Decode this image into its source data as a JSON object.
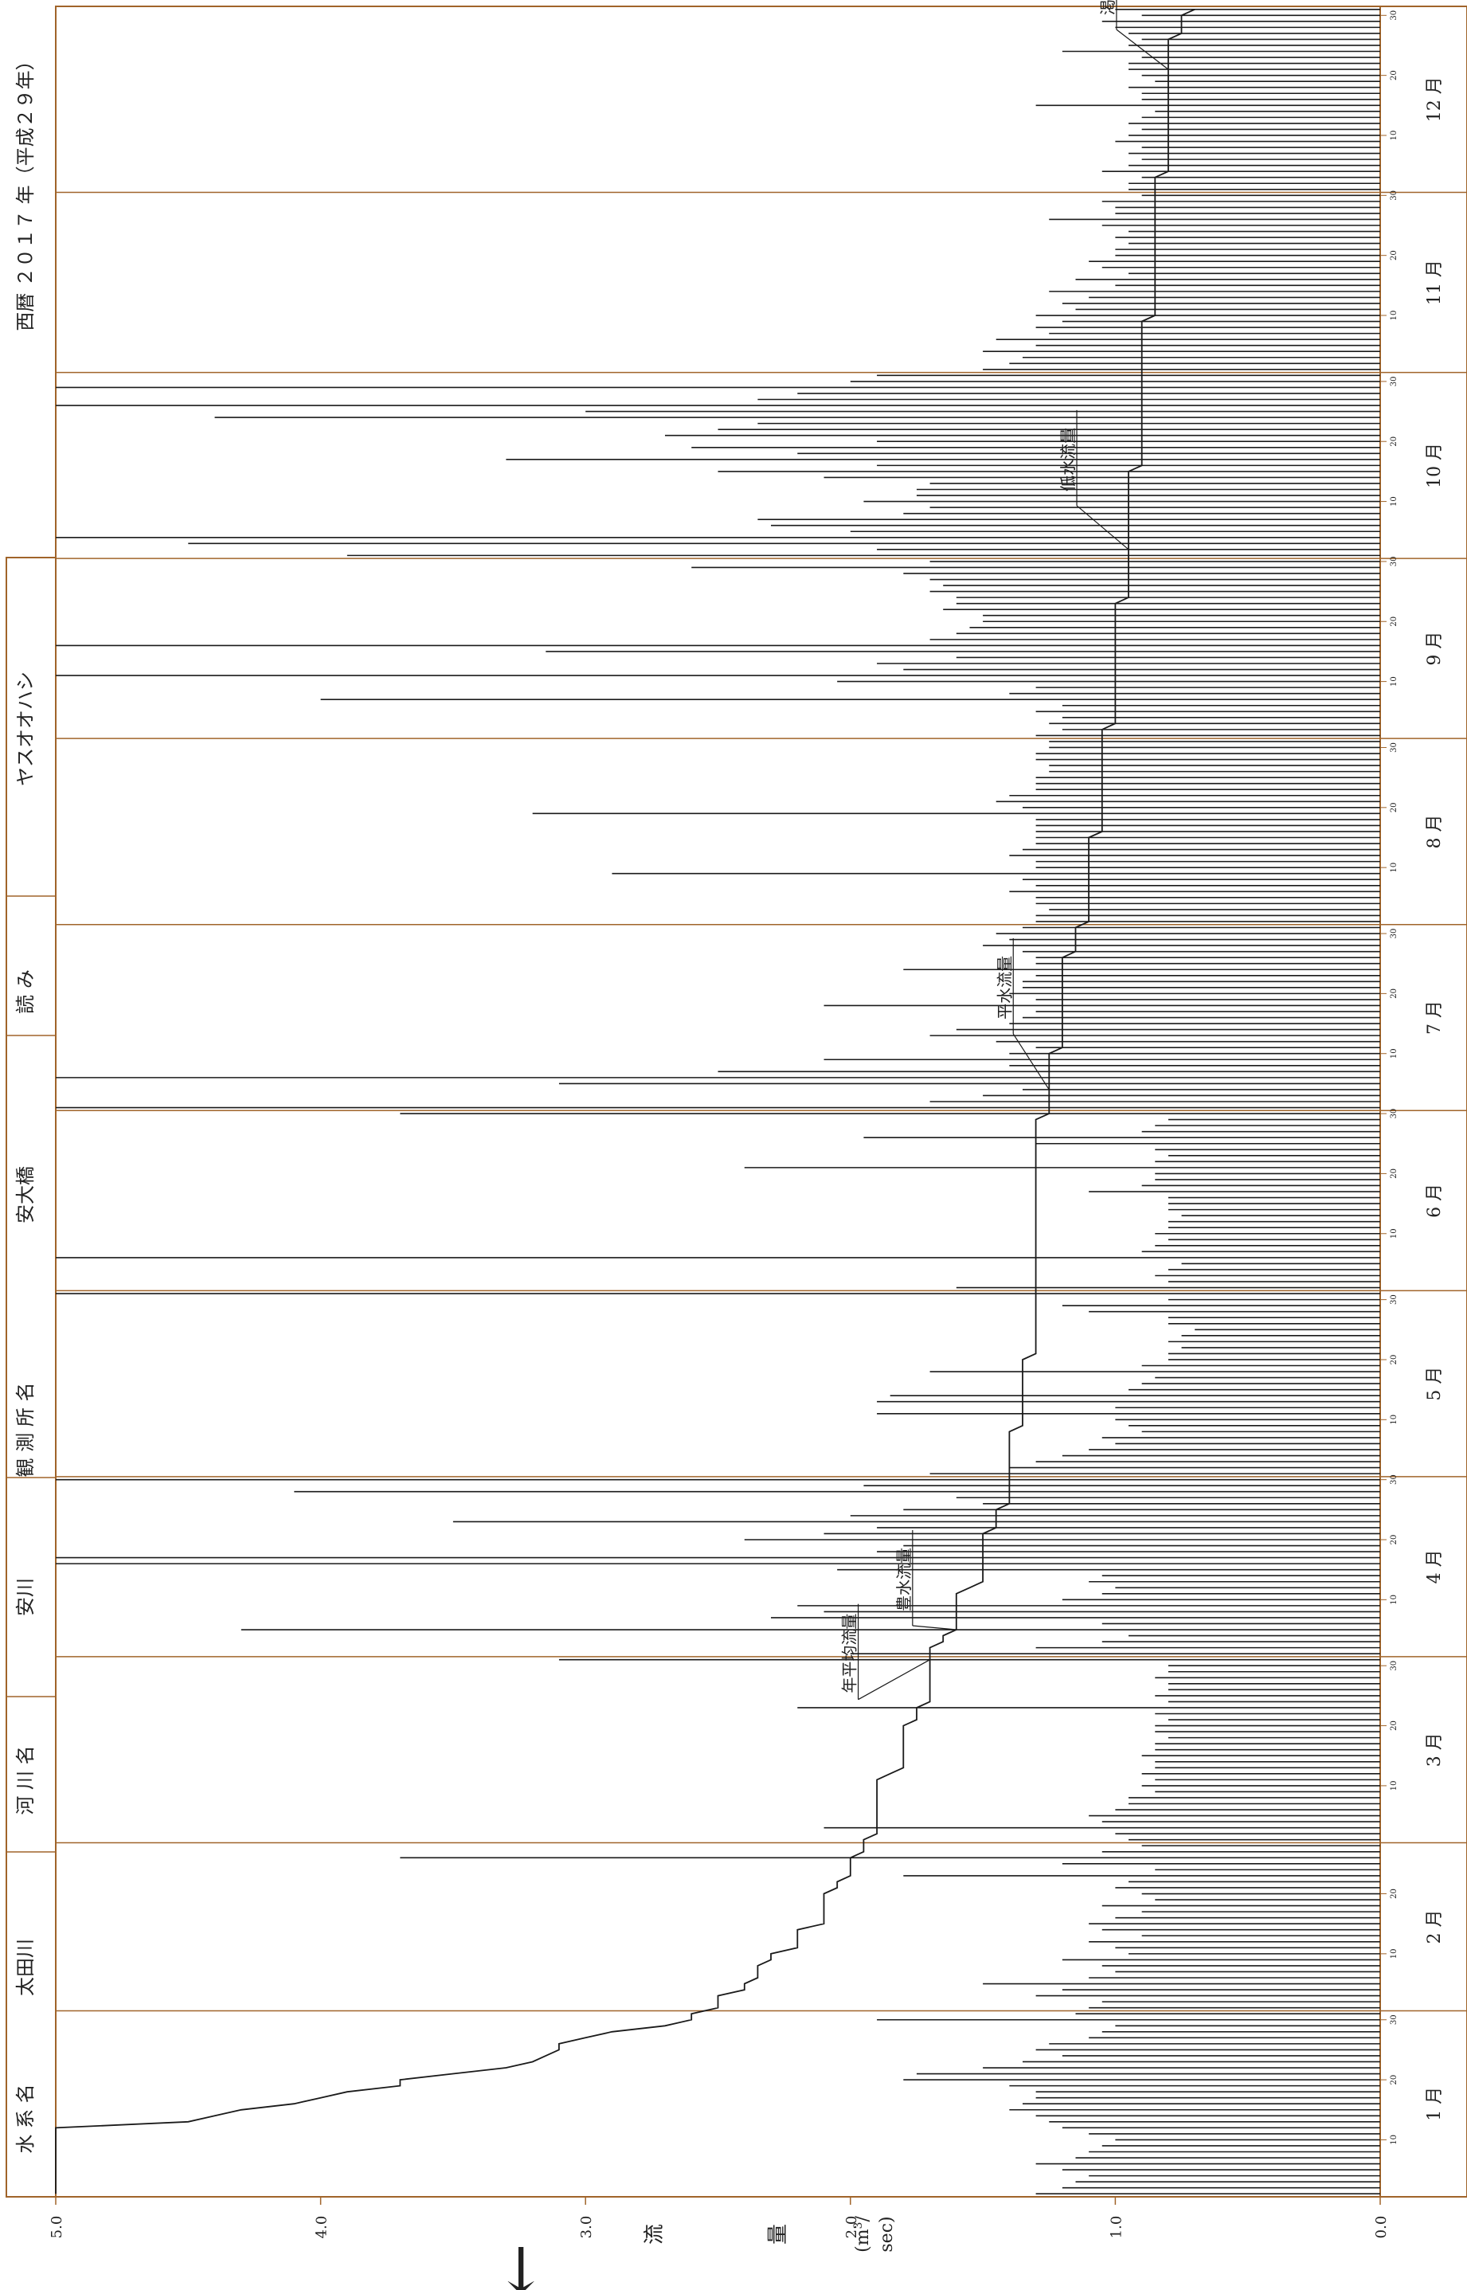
{
  "header": {
    "year_label": "西暦 ２０１７ 年（平成２９年）",
    "river_system_label": "水 系 名",
    "river_system_name": "太田川",
    "river_label": "河 川 名",
    "river_name": "安川",
    "station_label": "観 測 所 名",
    "station_name": "安大橋",
    "reading_label": "読 み",
    "reading_value": "ヤスオオハシ"
  },
  "axis": {
    "ylabel_chars": [
      "流",
      "量"
    ],
    "unit_paren_open": "(m",
    "unit_sup": "3",
    "unit_slash": "/",
    "unit_sec": "sec)",
    "arrow": "←"
  },
  "colors": {
    "frame": "#a0642a",
    "grid": "#a0642a",
    "bars": "#1a1a1a",
    "curve": "#1a1a1a"
  },
  "chart_data": {
    "type": "bar",
    "title": "",
    "ylabel": "流量",
    "yunit": "m3/sec",
    "ylim": [
      0,
      5
    ],
    "yticks": [
      0,
      1,
      2,
      3,
      4,
      5
    ],
    "ytick_labels": [
      "0.0",
      "1.0",
      "2.0",
      "3.0",
      "4.0",
      "5.0"
    ],
    "grid": false,
    "months": [
      "1 月",
      "2 月",
      "3 月",
      "4 月",
      "5 月",
      "6 月",
      "7 月",
      "8 月",
      "9 月",
      "10 月",
      "11 月",
      "12 月"
    ],
    "month_days": [
      31,
      28,
      31,
      30,
      31,
      30,
      31,
      31,
      30,
      31,
      30,
      31
    ],
    "day_ticks": [
      "10",
      "20",
      "30"
    ],
    "daily_flow": [
      1.3,
      1.2,
      1.15,
      1.1,
      1.2,
      1.3,
      1.15,
      1.1,
      1.05,
      1.0,
      1.1,
      1.2,
      1.25,
      1.3,
      1.4,
      1.35,
      1.3,
      1.3,
      1.4,
      1.8,
      1.75,
      1.5,
      1.35,
      1.2,
      1.3,
      1.25,
      1.1,
      1.05,
      1.0,
      1.9,
      1.15,
      1.1,
      1.05,
      1.3,
      1.2,
      1.5,
      1.1,
      1.0,
      1.05,
      1.2,
      0.95,
      1.0,
      1.1,
      0.9,
      1.05,
      1.1,
      1.0,
      0.9,
      1.05,
      0.85,
      0.9,
      1.0,
      0.95,
      1.8,
      0.85,
      1.2,
      3.7,
      1.05,
      0.9,
      0.95,
      1.0,
      2.1,
      1.05,
      1.1,
      1.0,
      0.95,
      0.95,
      0.85,
      0.9,
      0.85,
      0.9,
      0.85,
      0.85,
      0.9,
      0.85,
      0.85,
      0.8,
      0.85,
      0.85,
      0.8,
      0.85,
      2.2,
      0.8,
      0.85,
      0.8,
      0.8,
      0.85,
      0.8,
      0.8,
      3.1,
      2.0,
      1.3,
      1.05,
      0.95,
      4.3,
      1.05,
      2.3,
      2.1,
      2.2,
      1.2,
      1.05,
      1.0,
      1.1,
      1.05,
      2.05,
      5.0,
      5.0,
      1.9,
      1.8,
      2.4,
      2.1,
      1.9,
      3.5,
      2.0,
      1.8,
      1.5,
      1.6,
      4.1,
      1.95,
      5.0,
      1.7,
      1.4,
      1.3,
      1.2,
      1.1,
      1.0,
      1.05,
      0.9,
      0.95,
      1.0,
      1.9,
      1.0,
      1.9,
      1.85,
      0.95,
      0.9,
      0.85,
      1.7,
      0.9,
      0.8,
      0.8,
      0.75,
      0.8,
      0.75,
      0.7,
      0.8,
      0.8,
      1.1,
      1.2,
      0.8,
      5.0,
      1.6,
      0.8,
      0.85,
      0.8,
      0.75,
      5.0,
      0.9,
      0.85,
      0.8,
      0.85,
      0.8,
      0.8,
      0.75,
      0.8,
      0.8,
      0.8,
      1.1,
      0.9,
      0.85,
      0.85,
      2.4,
      0.85,
      0.8,
      0.85,
      1.3,
      1.95,
      0.9,
      0.85,
      0.8,
      3.7,
      5.0,
      1.7,
      1.5,
      1.35,
      3.1,
      5.0,
      2.5,
      1.4,
      2.1,
      1.4,
      1.3,
      1.45,
      1.7,
      1.6,
      1.4,
      1.35,
      1.3,
      2.1,
      1.3,
      1.4,
      1.35,
      1.35,
      1.3,
      1.8,
      1.3,
      1.3,
      1.35,
      1.5,
      1.4,
      1.45,
      1.35,
      1.3,
      1.3,
      1.25,
      1.3,
      1.3,
      1.4,
      1.3,
      1.35,
      2.9,
      1.3,
      1.3,
      1.4,
      1.35,
      1.3,
      1.3,
      1.3,
      1.3,
      1.3,
      3.2,
      1.35,
      1.45,
      1.4,
      1.3,
      1.3,
      1.3,
      1.25,
      1.25,
      1.3,
      1.3,
      1.25,
      1.25,
      1.3,
      1.2,
      1.25,
      1.2,
      1.3,
      1.2,
      4.0,
      1.4,
      1.3,
      2.05,
      5.0,
      1.8,
      1.9,
      1.6,
      3.15,
      5.0,
      1.7,
      1.6,
      1.55,
      1.5,
      1.5,
      1.65,
      1.6,
      1.6,
      1.7,
      1.65,
      1.7,
      1.8,
      2.6,
      1.7,
      3.9,
      1.9,
      4.5,
      5.0,
      2.0,
      2.3,
      2.35,
      1.8,
      1.7,
      1.95,
      1.75,
      1.75,
      1.7,
      2.1,
      2.5,
      1.9,
      3.3,
      2.2,
      2.6,
      1.9,
      2.7,
      2.5,
      2.35,
      4.4,
      3.0,
      5.0,
      2.35,
      2.2,
      5.0,
      2.0,
      1.9,
      1.5,
      1.4,
      1.35,
      1.5,
      1.3,
      1.45,
      1.25,
      1.3,
      1.2,
      1.3,
      1.15,
      1.2,
      1.1,
      1.25,
      1.0,
      1.15,
      0.95,
      1.05,
      1.1,
      1.0,
      1.0,
      0.95,
      1.0,
      0.95,
      1.05,
      1.25,
      1.0,
      1.0,
      1.05,
      0.9,
      0.95,
      0.95,
      0.9,
      1.05,
      0.95,
      0.9,
      0.95,
      0.9,
      1.0,
      0.95,
      0.9,
      0.95,
      0.9,
      0.85,
      1.3,
      0.9,
      0.9,
      0.95,
      0.85,
      0.9,
      0.95,
      0.95,
      0.9,
      1.2,
      0.95,
      0.9,
      0.95,
      1.0,
      1.05,
      0.9,
      1.0
    ],
    "duration_curve_label_year_avg": "年平均流量",
    "duration_curve_label_high": "豊水流量",
    "duration_curve_label_normal": "平水流量",
    "duration_curve_label_low": "低水流量",
    "duration_curve_label_drought": "渇水流量"
  }
}
